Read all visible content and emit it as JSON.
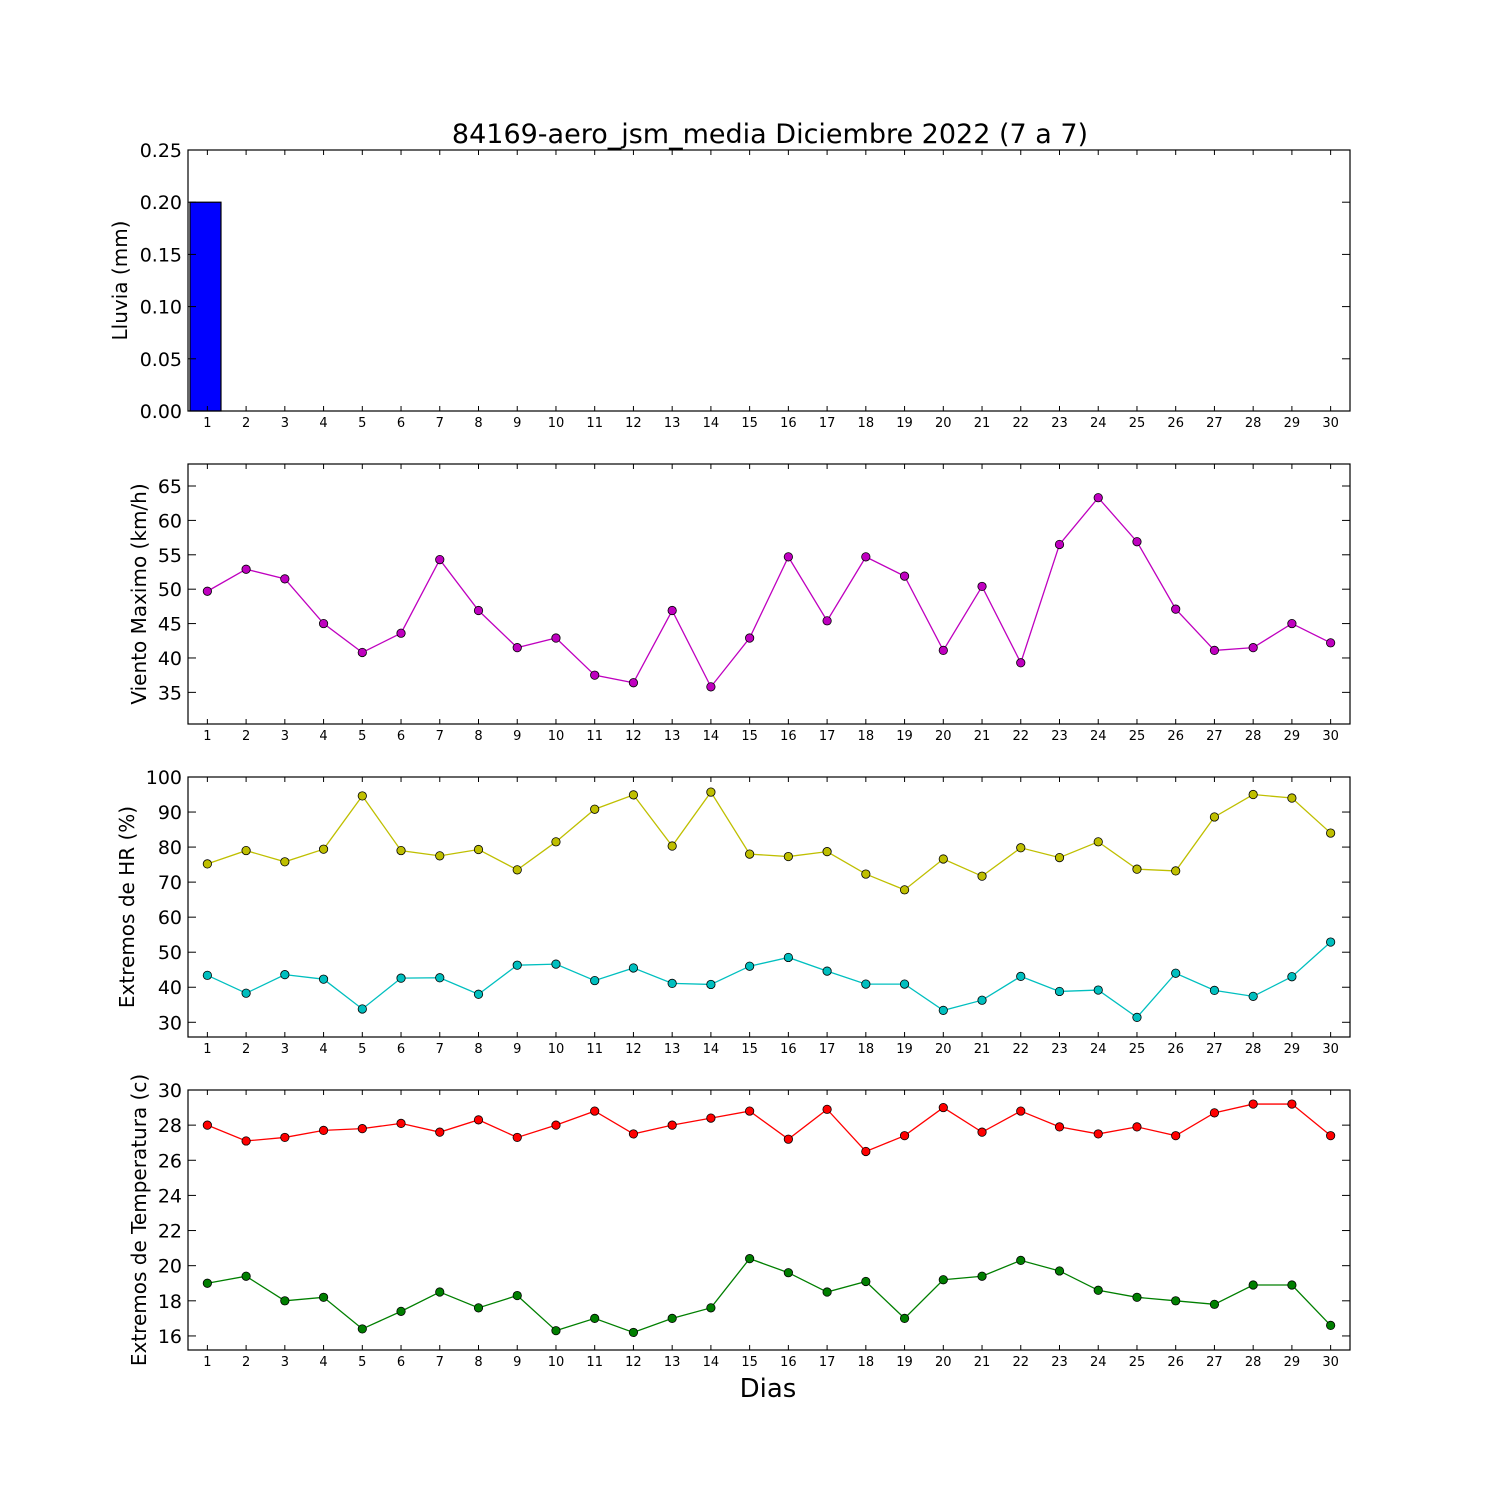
{
  "figure": {
    "title": "84169-aero_jsm_media Diciembre 2022  (7 a 7)",
    "xlabel": "Dias"
  },
  "chart_data": [
    {
      "type": "bar",
      "ylabel": "Lluvia (mm)",
      "categories": [
        "1",
        "2",
        "3",
        "4",
        "5",
        "6",
        "7",
        "8",
        "9",
        "10",
        "11",
        "12",
        "13",
        "14",
        "15",
        "16",
        "17",
        "18",
        "19",
        "20",
        "21",
        "22",
        "23",
        "24",
        "25",
        "26",
        "27",
        "28",
        "29",
        "30"
      ],
      "ylim": [
        0,
        0.25
      ],
      "yticks": [
        "0.00",
        "0.05",
        "0.10",
        "0.15",
        "0.20",
        "0.25"
      ],
      "series": [
        {
          "color": "#0000ff",
          "values": [
            0.2,
            0,
            0,
            0,
            0,
            0,
            0,
            0,
            0,
            0,
            0,
            0,
            0,
            0,
            0,
            0,
            0,
            0,
            0,
            0,
            0,
            0,
            0,
            0,
            0,
            0,
            0,
            0,
            0,
            0
          ]
        }
      ]
    },
    {
      "type": "line",
      "ylabel": "Viento Maximo (km/h)",
      "categories": [
        "1",
        "2",
        "3",
        "4",
        "5",
        "6",
        "7",
        "8",
        "9",
        "10",
        "11",
        "12",
        "13",
        "14",
        "15",
        "16",
        "17",
        "18",
        "19",
        "20",
        "21",
        "22",
        "23",
        "24",
        "25",
        "26",
        "27",
        "28",
        "29",
        "30"
      ],
      "ylim": [
        30.4,
        68.2
      ],
      "yticks": [
        "35",
        "40",
        "45",
        "50",
        "55",
        "60",
        "65"
      ],
      "series": [
        {
          "color": "#bf00bf",
          "values": [
            49.7,
            52.9,
            51.5,
            45.0,
            40.8,
            43.6,
            54.3,
            46.9,
            41.5,
            42.9,
            37.5,
            36.4,
            46.9,
            35.8,
            42.9,
            54.7,
            45.4,
            54.7,
            51.9,
            41.1,
            50.4,
            39.3,
            56.5,
            63.3,
            56.9,
            47.1,
            41.1,
            41.5,
            45.0,
            42.2
          ]
        }
      ]
    },
    {
      "type": "line",
      "ylabel": "Extremos de HR (%)",
      "categories": [
        "1",
        "2",
        "3",
        "4",
        "5",
        "6",
        "7",
        "8",
        "9",
        "10",
        "11",
        "12",
        "13",
        "14",
        "15",
        "16",
        "17",
        "18",
        "19",
        "20",
        "21",
        "22",
        "23",
        "24",
        "25",
        "26",
        "27",
        "28",
        "29",
        "30"
      ],
      "ylim": [
        25.8,
        100
      ],
      "yticks": [
        "30",
        "40",
        "50",
        "60",
        "70",
        "80",
        "90",
        "100"
      ],
      "series": [
        {
          "color": "#bfbf00",
          "values": [
            75.2,
            79.0,
            75.8,
            79.4,
            94.6,
            79.0,
            77.5,
            79.3,
            73.5,
            81.5,
            90.8,
            94.9,
            80.3,
            95.7,
            78.0,
            77.3,
            78.7,
            72.3,
            67.8,
            76.6,
            71.7,
            79.8,
            77.0,
            81.5,
            73.7,
            73.2,
            88.6,
            95.0,
            94.0,
            84.0
          ]
        },
        {
          "color": "#00bfbf",
          "values": [
            43.4,
            38.3,
            43.6,
            42.3,
            33.8,
            42.6,
            42.7,
            38.0,
            46.3,
            46.6,
            41.9,
            45.5,
            41.1,
            40.8,
            46.0,
            48.5,
            44.6,
            40.9,
            40.9,
            33.4,
            36.3,
            43.1,
            38.8,
            39.2,
            31.4,
            44.0,
            39.1,
            37.4,
            43.0,
            52.9
          ]
        }
      ]
    },
    {
      "type": "line",
      "ylabel": "Extremos de Temperatura (c)",
      "categories": [
        "1",
        "2",
        "3",
        "4",
        "5",
        "6",
        "7",
        "8",
        "9",
        "10",
        "11",
        "12",
        "13",
        "14",
        "15",
        "16",
        "17",
        "18",
        "19",
        "20",
        "21",
        "22",
        "23",
        "24",
        "25",
        "26",
        "27",
        "28",
        "29",
        "30"
      ],
      "ylim": [
        15.2,
        30
      ],
      "yticks": [
        "16",
        "18",
        "20",
        "22",
        "24",
        "26",
        "28",
        "30"
      ],
      "series": [
        {
          "color": "#ff0000",
          "values": [
            28.0,
            27.1,
            27.3,
            27.7,
            27.8,
            28.1,
            27.6,
            28.3,
            27.3,
            28.0,
            28.8,
            27.5,
            28.0,
            28.4,
            28.8,
            27.2,
            28.9,
            26.5,
            27.4,
            29.0,
            27.6,
            28.8,
            27.9,
            27.5,
            27.9,
            27.4,
            28.7,
            29.2,
            29.2,
            27.4
          ]
        },
        {
          "color": "#007f00",
          "values": [
            19.0,
            19.4,
            18.0,
            18.2,
            16.4,
            17.4,
            18.5,
            17.6,
            18.3,
            16.3,
            17.0,
            16.2,
            17.0,
            17.6,
            20.4,
            19.6,
            18.5,
            19.1,
            17.0,
            19.2,
            19.4,
            20.3,
            19.7,
            18.6,
            18.2,
            18.0,
            17.8,
            18.9,
            18.9,
            16.6
          ]
        }
      ]
    }
  ]
}
